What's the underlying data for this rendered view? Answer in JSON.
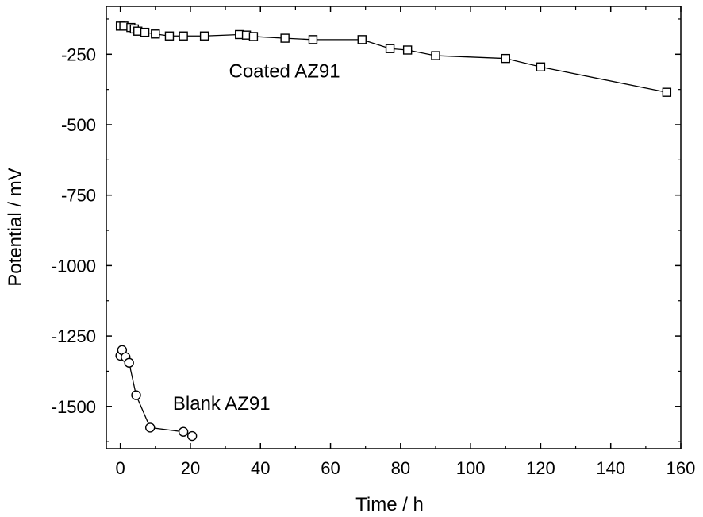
{
  "chart_data": {
    "type": "scatter",
    "xlabel": "Time / h",
    "ylabel": "Potential / mV",
    "xlim": [
      -4,
      160
    ],
    "ylim": [
      -1650,
      -80
    ],
    "xticks": [
      0,
      20,
      40,
      60,
      80,
      100,
      120,
      140,
      160
    ],
    "xtick_labels": [
      "0",
      "20",
      "40",
      "60",
      "80",
      "100",
      "120",
      "140",
      "160"
    ],
    "yticks": [
      -250,
      -500,
      -750,
      -1000,
      -1250,
      -1500
    ],
    "ytick_labels": [
      "-250",
      "-500",
      "-750",
      "-1000",
      "-1250",
      "-1500"
    ],
    "grid": false,
    "annotations": [
      {
        "text": "Coated AZ91",
        "x": 31,
        "y": -310
      },
      {
        "text": "Blank AZ91",
        "x": 15,
        "y": -1490
      }
    ],
    "series": [
      {
        "marker": "square",
        "x": [
          0,
          1,
          3,
          4,
          5,
          7,
          10,
          14,
          18,
          24,
          34,
          36,
          38,
          47,
          55,
          69,
          77,
          82,
          90,
          110,
          120,
          156
        ],
        "y": [
          -150,
          -150,
          -155,
          -160,
          -168,
          -172,
          -178,
          -185,
          -185,
          -185,
          -180,
          -182,
          -187,
          -193,
          -198,
          -198,
          -230,
          -235,
          -255,
          -265,
          -295,
          -385
        ]
      },
      {
        "marker": "circle",
        "x": [
          0,
          0.5,
          1.5,
          2.5,
          4.5,
          8.5,
          18,
          20.5
        ],
        "y": [
          -1320,
          -1300,
          -1325,
          -1345,
          -1460,
          -1575,
          -1590,
          -1605
        ]
      }
    ]
  }
}
